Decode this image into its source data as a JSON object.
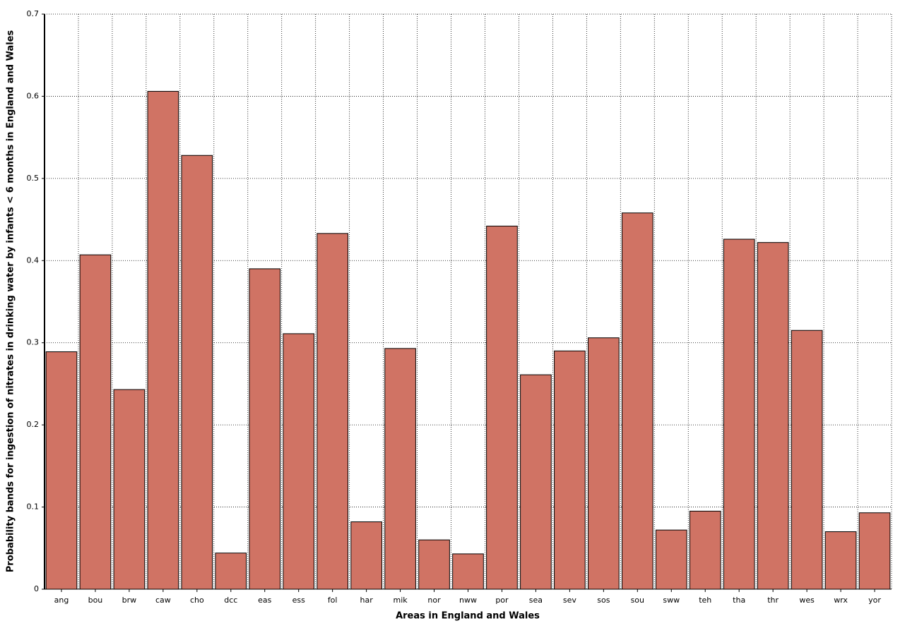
{
  "chart_data": {
    "type": "bar",
    "x_label": "Areas in England and Wales",
    "y_label": "Probability bands for ingestion of nitrates in drinking water by infants < 6 months in England and Wales",
    "categories": [
      "ang",
      "bou",
      "brw",
      "caw",
      "cho",
      "dcc",
      "eas",
      "ess",
      "fol",
      "har",
      "mik",
      "nor",
      "nww",
      "por",
      "sea",
      "sev",
      "sos",
      "sou",
      "sww",
      "teh",
      "tha",
      "thr",
      "wes",
      "wrx",
      "yor"
    ],
    "values": [
      0.289,
      0.407,
      0.243,
      0.606,
      0.528,
      0.044,
      0.39,
      0.311,
      0.433,
      0.082,
      0.293,
      0.06,
      0.043,
      0.442,
      0.261,
      0.29,
      0.306,
      0.458,
      0.072,
      0.095,
      0.426,
      0.422,
      0.315,
      0.07,
      0.093
    ],
    "color": "#d07364",
    "ylim": [
      0,
      0.7
    ],
    "yticks": [
      0,
      0.1,
      0.2,
      0.3,
      0.4,
      0.5,
      0.6,
      0.7
    ],
    "grid": true
  }
}
